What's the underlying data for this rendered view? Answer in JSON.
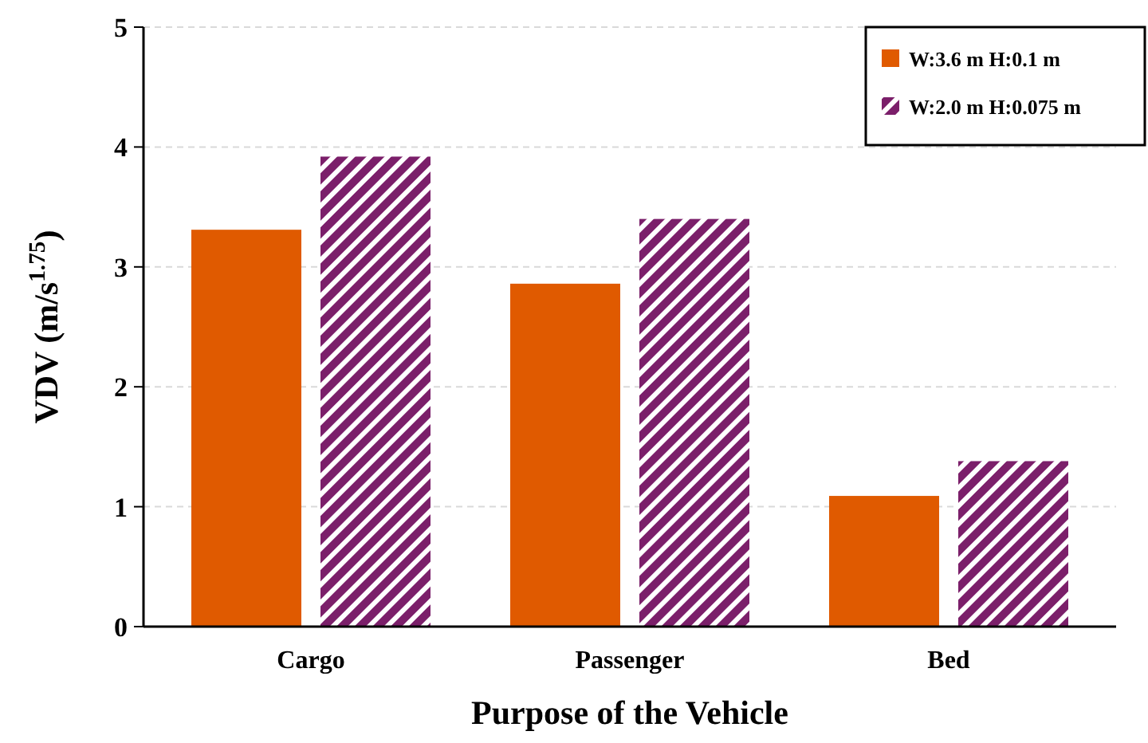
{
  "chart_data": {
    "type": "bar",
    "xlabel": "Purpose of the Vehicle",
    "ylabel": "VDV (m/s$^{1.75}$)",
    "categories": [
      "Cargo",
      "Passenger",
      "Bed"
    ],
    "series": [
      {
        "name": "W:3.6 m H:0.1 m",
        "color": "#e05a00",
        "values": [
          3.31,
          2.86,
          1.09
        ]
      },
      {
        "name": "W:2.0 m H:0.075 m",
        "color": "#7b1f6a",
        "values": [
          3.92,
          3.4,
          1.38
        ]
      }
    ],
    "ylim": [
      0,
      5
    ],
    "yticks": [
      0,
      1,
      2,
      3,
      4,
      5
    ],
    "grid": "y",
    "legend": "top right"
  }
}
